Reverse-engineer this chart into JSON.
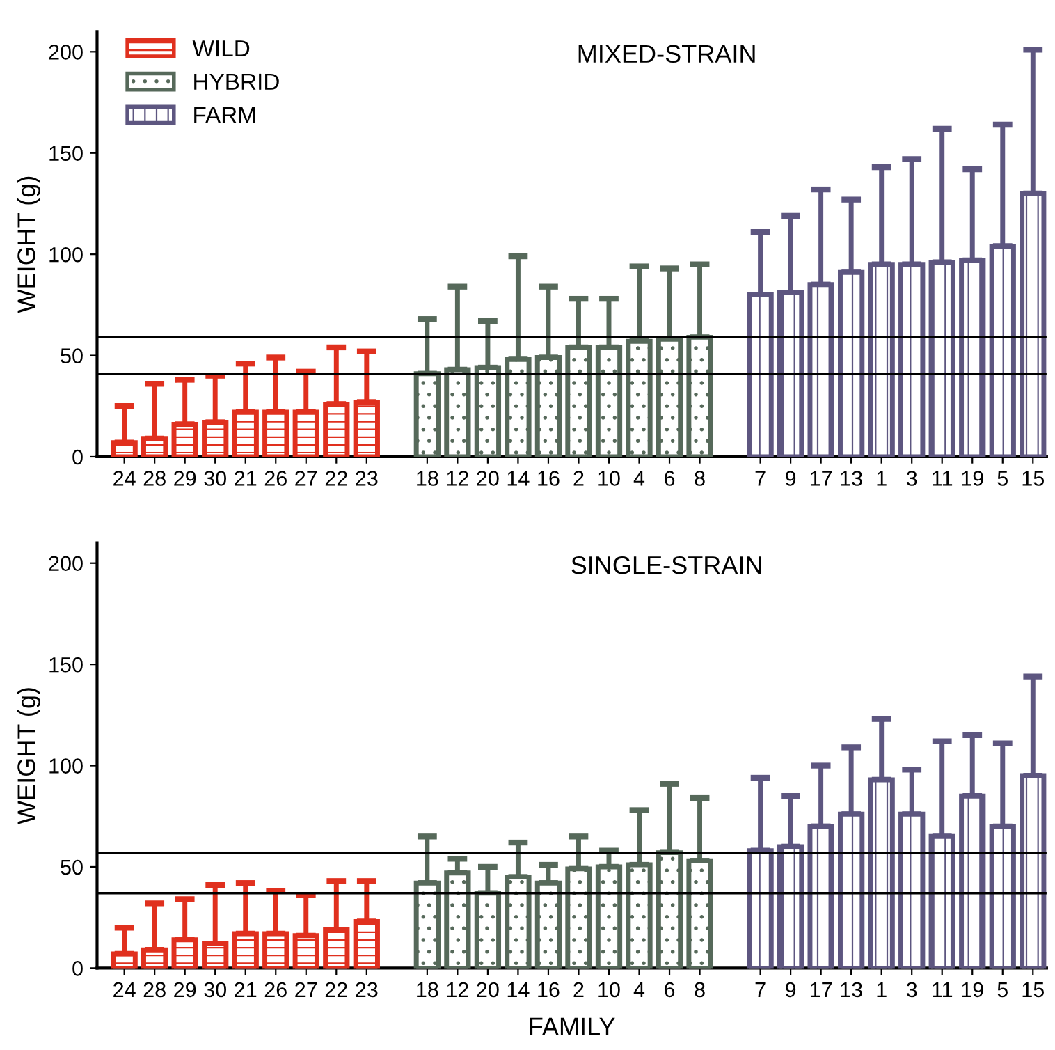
{
  "chart_data": [
    {
      "type": "bar",
      "title": "MIXED-STRAIN",
      "ylabel": "WEIGHT (g)",
      "categories": [
        "24",
        "28",
        "29",
        "30",
        "21",
        "26",
        "27",
        "22",
        "23",
        null,
        "18",
        "12",
        "20",
        "14",
        "16",
        "2",
        "10",
        "4",
        "6",
        "8",
        null,
        "7",
        "9",
        "17",
        "13",
        "1",
        "3",
        "11",
        "19",
        "5",
        "15"
      ],
      "series": [
        {
          "name": "WILD",
          "color": "#e0301e",
          "values": [
            7,
            9,
            16,
            17,
            22,
            22,
            22,
            26,
            27,
            null,
            null,
            null,
            null,
            null,
            null,
            null,
            null,
            null,
            null,
            null,
            null,
            null,
            null,
            null,
            null,
            null,
            null,
            null,
            null,
            null,
            null
          ],
          "errors": [
            [
              7,
              25
            ],
            [
              9,
              36
            ],
            [
              16,
              38
            ],
            [
              17,
              40
            ],
            [
              22,
              46
            ],
            [
              22,
              49
            ],
            [
              22,
              42
            ],
            [
              26,
              54
            ],
            [
              27,
              52
            ],
            null,
            null,
            null,
            null,
            null,
            null,
            null,
            null,
            null,
            null,
            null,
            null,
            null,
            null,
            null,
            null,
            null,
            null,
            null,
            null,
            null,
            null
          ]
        },
        {
          "name": "HYBRID",
          "color": "#56695a",
          "values": [
            null,
            null,
            null,
            null,
            null,
            null,
            null,
            null,
            null,
            null,
            41,
            43,
            44,
            48,
            49,
            54,
            54,
            57,
            58,
            59,
            null,
            null,
            null,
            null,
            null,
            null,
            null,
            null,
            null,
            null,
            null
          ],
          "errors": [
            null,
            null,
            null,
            null,
            null,
            null,
            null,
            null,
            null,
            null,
            [
              41,
              68
            ],
            [
              43,
              84
            ],
            [
              44,
              67
            ],
            [
              48,
              99
            ],
            [
              49,
              84
            ],
            [
              54,
              78
            ],
            [
              54,
              78
            ],
            [
              57,
              94
            ],
            [
              58,
              93
            ],
            [
              59,
              95
            ],
            null,
            null,
            null,
            null,
            null,
            null,
            null,
            null,
            null,
            null,
            null
          ]
        },
        {
          "name": "FARM",
          "color": "#5d5680",
          "values": [
            null,
            null,
            null,
            null,
            null,
            null,
            null,
            null,
            null,
            null,
            null,
            null,
            null,
            null,
            null,
            null,
            null,
            null,
            null,
            null,
            null,
            80,
            81,
            85,
            91,
            95,
            95,
            96,
            97,
            104,
            130
          ],
          "errors": [
            null,
            null,
            null,
            null,
            null,
            null,
            null,
            null,
            null,
            null,
            null,
            null,
            null,
            null,
            null,
            null,
            null,
            null,
            null,
            null,
            null,
            [
              80,
              111
            ],
            [
              81,
              119
            ],
            [
              85,
              132
            ],
            [
              91,
              127
            ],
            [
              95,
              143
            ],
            [
              95,
              147
            ],
            [
              96,
              162
            ],
            [
              97,
              142
            ],
            [
              104,
              164
            ],
            [
              130,
              201
            ]
          ]
        }
      ],
      "ylim": [
        0,
        210
      ],
      "yticks": [
        0,
        50,
        100,
        150,
        200
      ],
      "grid": false,
      "legend": "top left",
      "ref_lines": [
        {
          "axis": "y",
          "value": 59,
          "color": "#000000"
        },
        {
          "axis": "y",
          "value": 41,
          "color": "#000000"
        }
      ]
    },
    {
      "type": "bar",
      "title": "SINGLE-STRAIN",
      "ylabel": "WEIGHT (g)",
      "xlabel": "FAMILY",
      "categories": [
        "24",
        "28",
        "29",
        "30",
        "21",
        "26",
        "27",
        "22",
        "23",
        null,
        "18",
        "12",
        "20",
        "14",
        "16",
        "2",
        "10",
        "4",
        "6",
        "8",
        null,
        "7",
        "9",
        "17",
        "13",
        "1",
        "3",
        "11",
        "19",
        "5",
        "15"
      ],
      "series": [
        {
          "color": "#e0301e",
          "values": [
            7,
            9,
            14,
            12,
            17,
            17,
            16,
            19,
            23,
            null,
            null,
            null,
            null,
            null,
            null,
            null,
            null,
            null,
            null,
            null,
            null,
            null,
            null,
            null,
            null,
            null,
            null,
            null,
            null,
            null,
            null
          ],
          "errors": [
            [
              7,
              20
            ],
            [
              9,
              32
            ],
            [
              14,
              34
            ],
            [
              12,
              41
            ],
            [
              17,
              42
            ],
            [
              17,
              38
            ],
            [
              16,
              36
            ],
            [
              19,
              43
            ],
            [
              23,
              43
            ],
            null,
            null,
            null,
            null,
            null,
            null,
            null,
            null,
            null,
            null,
            null,
            null,
            null,
            null,
            null,
            null,
            null,
            null,
            null,
            null,
            null,
            null
          ]
        },
        {
          "color": "#56695a",
          "values": [
            null,
            null,
            null,
            null,
            null,
            null,
            null,
            null,
            null,
            null,
            42,
            47,
            37,
            45,
            42,
            49,
            50,
            51,
            57,
            53,
            null,
            null,
            null,
            null,
            null,
            null,
            null,
            null,
            null,
            null,
            null
          ],
          "errors": [
            null,
            null,
            null,
            null,
            null,
            null,
            null,
            null,
            null,
            null,
            [
              42,
              65
            ],
            [
              47,
              54
            ],
            [
              37,
              50
            ],
            [
              45,
              62
            ],
            [
              42,
              51
            ],
            [
              49,
              65
            ],
            [
              50,
              58
            ],
            [
              51,
              78
            ],
            [
              57,
              91
            ],
            [
              53,
              84
            ],
            null,
            null,
            null,
            null,
            null,
            null,
            null,
            null,
            null,
            null,
            null
          ]
        },
        {
          "color": "#5d5680",
          "values": [
            null,
            null,
            null,
            null,
            null,
            null,
            null,
            null,
            null,
            null,
            null,
            null,
            null,
            null,
            null,
            null,
            null,
            null,
            null,
            null,
            null,
            58,
            60,
            70,
            76,
            93,
            76,
            65,
            85,
            70,
            95
          ],
          "errors": [
            null,
            null,
            null,
            null,
            null,
            null,
            null,
            null,
            null,
            null,
            null,
            null,
            null,
            null,
            null,
            null,
            null,
            null,
            null,
            null,
            null,
            [
              58,
              94
            ],
            [
              60,
              85
            ],
            [
              70,
              100
            ],
            [
              76,
              109
            ],
            [
              93,
              123
            ],
            [
              76,
              98
            ],
            [
              65,
              112
            ],
            [
              85,
              115
            ],
            [
              70,
              111
            ],
            [
              95,
              144
            ]
          ]
        }
      ],
      "ylim": [
        0,
        210
      ],
      "yticks": [
        0,
        50,
        100,
        150,
        200
      ],
      "grid": false,
      "ref_lines": [
        {
          "axis": "y",
          "value": 57,
          "color": "#000000"
        },
        {
          "axis": "y",
          "value": 37,
          "color": "#000000"
        }
      ]
    }
  ]
}
